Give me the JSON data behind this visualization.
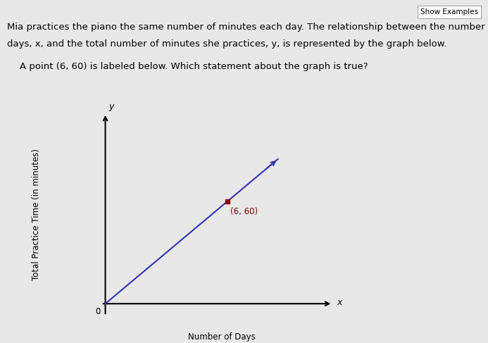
{
  "page_background": "#e8e8e8",
  "graph_background": "#e8e8e8",
  "show_examples_text": "Show Examples",
  "body_line1": "Mia practices the piano the same number of minutes each day. The relationship between the number of",
  "body_line2": "days, x, and the total number of minutes she practices, y, is represented by the graph below.",
  "subtitle": "A point (6, 60) is labeled below. Which statement about the graph is true?",
  "xlabel": "Number of Days",
  "ylabel": "Total Practice Time (in minutes)",
  "x_axis_label": "x",
  "y_axis_label": "y",
  "origin_label": "0",
  "point_x": 6,
  "point_y": 60,
  "point_label": "(6, 60)",
  "point_color": "#8b0000",
  "point_marker_color": "#8b0000",
  "line_color": "#3333bb",
  "axis_color": "#000000",
  "text_color": "#000000",
  "font_size_body": 9.5,
  "font_size_subtitle": 9.5,
  "font_size_axis_label": 8.5,
  "font_size_point": 8.5,
  "line_x_end": 8.5,
  "line_slope": 10,
  "xlim": [
    -0.5,
    12
  ],
  "ylim": [
    -10,
    115
  ]
}
